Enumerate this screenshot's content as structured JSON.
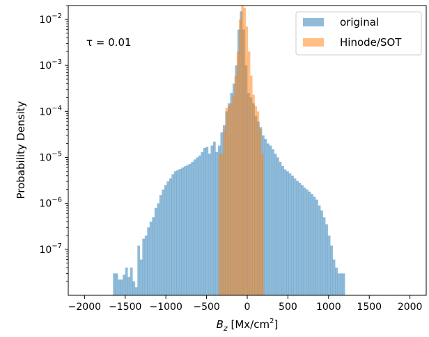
{
  "chart_data": {
    "type": "bar",
    "subtype": "overlaid-histogram",
    "xlabel": "B_z [Mx/cm²]",
    "ylabel": "Probability Density",
    "annotation": "τ = 0.01",
    "xlim": [
      -2200,
      2200
    ],
    "ylim": [
      1e-08,
      0.02
    ],
    "yscale": "log",
    "xticks": [
      -2000,
      -1500,
      -1000,
      -500,
      0,
      500,
      1000,
      1500,
      2000
    ],
    "xtick_labels": [
      "−2000",
      "−1500",
      "−1000",
      "−500",
      "0",
      "500",
      "1000",
      "1500",
      "2000"
    ],
    "yticks": [
      1e-07,
      1e-06,
      1e-05,
      0.0001,
      0.001,
      0.01
    ],
    "ytick_labels": [
      {
        "base": "10",
        "exp": "−7"
      },
      {
        "base": "10",
        "exp": "−6"
      },
      {
        "base": "10",
        "exp": "−5"
      },
      {
        "base": "10",
        "exp": "−4"
      },
      {
        "base": "10",
        "exp": "−3"
      },
      {
        "base": "10",
        "exp": "−2"
      }
    ],
    "grid": false,
    "legend_position": "upper-right",
    "series": [
      {
        "name": "original",
        "color": "#1f77b4",
        "opacity": 0.5,
        "bin_edges": [
          -1650,
          1200
        ],
        "values": [
          3e-08,
          3e-08,
          2.2e-08,
          2.2e-08,
          2.8e-08,
          4e-08,
          2.5e-08,
          4e-08,
          2e-08,
          1.5e-08,
          1.2e-07,
          6e-08,
          1.7e-07,
          2e-07,
          3e-07,
          4e-07,
          5e-07,
          8e-07,
          1e-06,
          1.5e-06,
          2e-06,
          2.5e-06,
          3e-06,
          3.5e-06,
          4.3e-06,
          5e-06,
          5.3e-06,
          5.6e-06,
          6e-06,
          6.4e-06,
          6.8e-06,
          7.2e-06,
          8e-06,
          9e-06,
          1e-05,
          1.1e-05,
          1.3e-05,
          1.6e-05,
          1.7e-05,
          1.2e-05,
          1.8e-05,
          2.2e-05,
          1.3e-05,
          1.8e-05,
          3.5e-05,
          5e-05,
          0.0001,
          0.00015,
          0.00025,
          0.0004,
          0.001,
          0.006,
          0.015,
          0.006,
          0.001,
          0.00025,
          0.0002,
          0.00015,
          8e-05,
          6e-05,
          4.5e-05,
          3e-05,
          2.5e-05,
          2e-05,
          1.8e-05,
          1.5e-05,
          1.2e-05,
          1e-05,
          8e-06,
          6.5e-06,
          5.5e-06,
          5e-06,
          4.5e-06,
          4e-06,
          3.5e-06,
          3.1e-06,
          2.8e-06,
          2.5e-06,
          2.2e-06,
          2e-06,
          1.8e-06,
          1.6e-06,
          1.4e-06,
          1.2e-06,
          9e-07,
          7e-07,
          5e-07,
          3.5e-07,
          2e-07,
          1.2e-07,
          6e-08,
          4e-08,
          3e-08,
          3e-08,
          3e-08
        ]
      },
      {
        "name": "Hinode/SOT",
        "color": "#ff7f0e",
        "opacity": 0.5,
        "bin_edges": [
          -350,
          200
        ],
        "values": [
          1.2e-05,
          1.2e-05,
          4e-05,
          0.00012,
          0.00013,
          0.00015,
          0.00022,
          0.0006,
          0.002,
          0.01,
          0.02,
          0.018,
          0.007,
          0.002,
          0.0006,
          0.00023,
          0.00013,
          0.0001,
          4e-05,
          1.2e-05
        ]
      }
    ]
  }
}
